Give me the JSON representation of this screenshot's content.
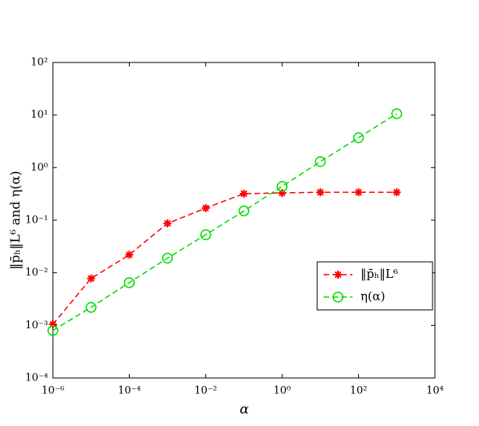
{
  "chart_data": {
    "type": "line",
    "log_x": true,
    "log_y": true,
    "x_label": "α",
    "y_label": "‖p̄ₕ‖L⁶ and η(α)",
    "x": [
      1e-06,
      1e-05,
      0.0001,
      0.001,
      0.01,
      0.1,
      1,
      10,
      100,
      1000
    ],
    "series": [
      {
        "name": "‖p̄ₕ‖L⁶",
        "color": "#ff0000",
        "marker": "star",
        "values": [
          0.00105,
          0.0078,
          0.022,
          0.087,
          0.17,
          0.32,
          0.33,
          0.34,
          0.34,
          0.34
        ]
      },
      {
        "name": "η(α)",
        "color": "#00dd00",
        "marker": "circle",
        "values": [
          0.0008,
          0.0022,
          0.0065,
          0.019,
          0.053,
          0.15,
          0.44,
          1.3,
          3.7,
          10.6
        ]
      }
    ],
    "xlim": [
      1e-06,
      10000
    ],
    "ylim": [
      0.0001,
      100
    ],
    "xticks": [
      {
        "value": 1e-06,
        "label": "10⁻⁶"
      },
      {
        "value": 0.0001,
        "label": "10⁻⁴"
      },
      {
        "value": 0.01,
        "label": "10⁻²"
      },
      {
        "value": 1,
        "label": "10⁰"
      },
      {
        "value": 100,
        "label": "10²"
      },
      {
        "value": 10000,
        "label": "10⁴"
      }
    ],
    "yticks": [
      {
        "value": 0.0001,
        "label": "10⁻⁴"
      },
      {
        "value": 0.001,
        "label": "10⁻³"
      },
      {
        "value": 0.01,
        "label": "10⁻²"
      },
      {
        "value": 0.1,
        "label": "10⁻¹"
      },
      {
        "value": 1,
        "label": "10⁰"
      },
      {
        "value": 10,
        "label": "10¹"
      },
      {
        "value": 100,
        "label": "10²"
      }
    ],
    "legend": "right"
  }
}
